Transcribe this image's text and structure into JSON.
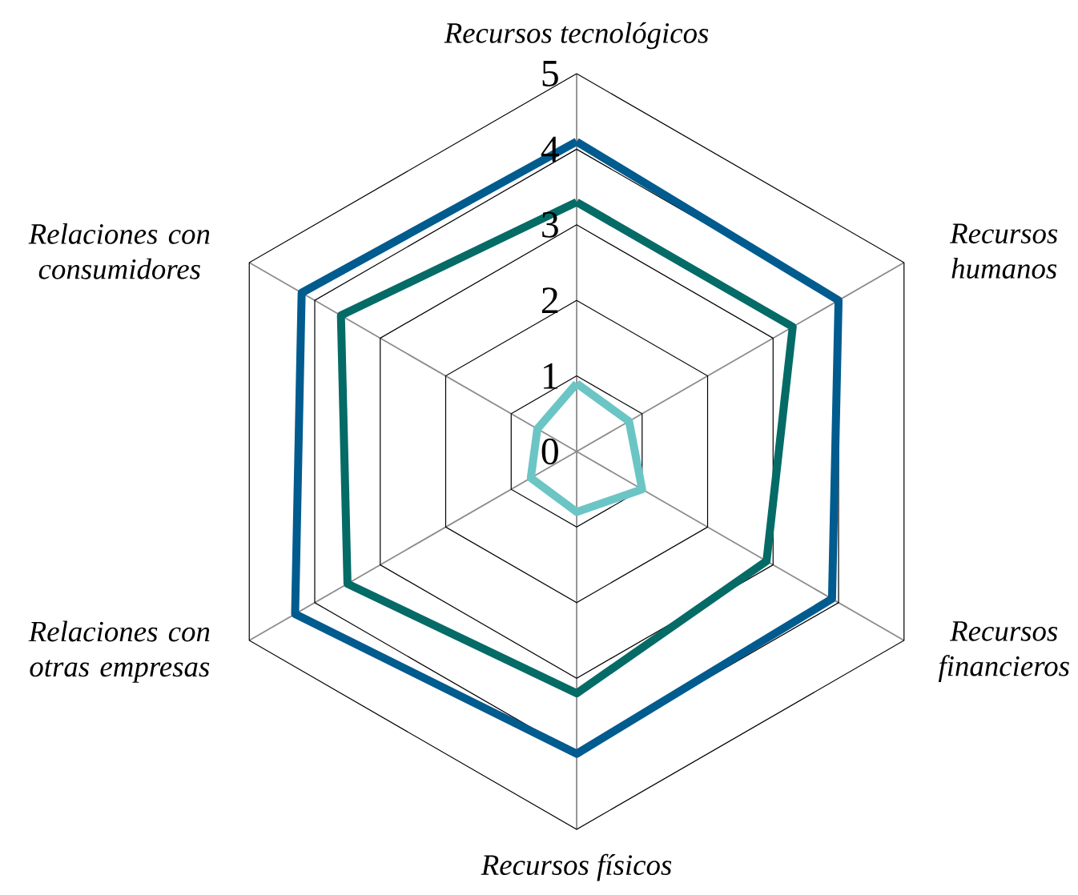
{
  "chart_data": {
    "type": "radar",
    "categories": [
      "Recursos tecnológicos",
      "Recursos humanos",
      "Recursos financieros",
      "Recursos físicos",
      "Relaciones con otras empresas",
      "Relaciones con consumidores"
    ],
    "series": [
      {
        "color": "#005b8f",
        "values": [
          4.1,
          4.0,
          3.9,
          4.0,
          4.3,
          4.2
        ]
      },
      {
        "color": "#056b66",
        "values": [
          3.3,
          3.3,
          2.9,
          3.2,
          3.5,
          3.6
        ]
      },
      {
        "color": "#6cc5c5",
        "values": [
          0.9,
          0.8,
          1.0,
          0.8,
          0.7,
          0.6
        ]
      }
    ],
    "ylim": [
      0,
      5
    ],
    "yticks": [
      0,
      1,
      2,
      3,
      4,
      5
    ],
    "grid": true,
    "marker": "none",
    "line_style": "solid"
  }
}
